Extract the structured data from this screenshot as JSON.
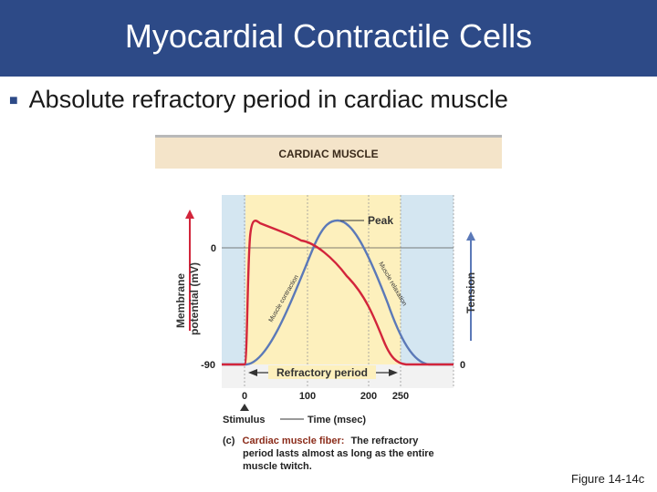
{
  "slide": {
    "title": "Myocardial Contractile Cells",
    "bullet": "Absolute refractory period in cardiac muscle",
    "figure_label": "Figure 14-14c"
  },
  "diagram": {
    "header": "CARDIAC MUSCLE",
    "y_left_label_line1": "Membrane",
    "y_left_label_line2": "potential (mV)",
    "y_left_ticks": [
      "0",
      "-90"
    ],
    "y_right_label": "Tension",
    "y_right_tick": "0",
    "x_ticks": [
      "0",
      "100",
      "200",
      "250"
    ],
    "stimulus_label": "Stimulus",
    "x_label": "Time (msec)",
    "peak_label": "Peak",
    "refractory_label": "Refractory period",
    "contraction_label": "Muscle contraction",
    "relaxation_label": "Muscle relaxation",
    "caption_prefix": "(c)",
    "caption_bold": "Cardiac muscle fiber:",
    "caption_rest_line1": "The refractory",
    "caption_line2": "period lasts almost as long as the entire",
    "caption_line3": "muscle twitch.",
    "colors": {
      "action_potential": "#d2253b",
      "tension": "#5b79b8",
      "refractory_zone": "#fdf0bd",
      "outer_zone": "#d4e6f1",
      "header_band": "#f4e4c9"
    }
  }
}
